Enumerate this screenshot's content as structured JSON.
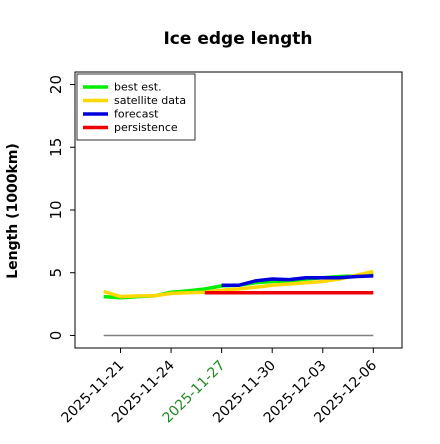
{
  "chart_data": {
    "type": "line",
    "title": "Ice edge length",
    "xlabel": "",
    "ylabel": "Length (1000km)",
    "ylim": [
      -1,
      21
    ],
    "x_ticks": [
      {
        "label": "2025-11-21",
        "day": 21,
        "color": "#000000"
      },
      {
        "label": "2025-11-24",
        "day": 24,
        "color": "#000000"
      },
      {
        "label": "2025-11-27",
        "day": 27,
        "color": "#228B22"
      },
      {
        "label": "2025-11-30",
        "day": 30,
        "color": "#000000"
      },
      {
        "label": "2025-12-03",
        "day": 33,
        "color": "#000000"
      },
      {
        "label": "2025-12-06",
        "day": 36,
        "color": "#000000"
      }
    ],
    "y_ticks": [
      0,
      5,
      10,
      15,
      20
    ],
    "xlim": [
      18.3,
      37.7
    ],
    "grid": false,
    "legend_position": "top-left",
    "zero_line": {
      "y": 0,
      "x_start": 20,
      "x_end": 36,
      "color": "#808080"
    },
    "series": [
      {
        "name": "best est.",
        "color": "#00ee00",
        "points": [
          {
            "x": "2025-11-20",
            "y": 3.1
          },
          {
            "x": "2025-11-21",
            "y": 3.0
          },
          {
            "x": "2025-11-22",
            "y": 3.1
          },
          {
            "x": "2025-11-23",
            "y": 3.15
          },
          {
            "x": "2025-11-24",
            "y": 3.45
          },
          {
            "x": "2025-11-25",
            "y": 3.55
          },
          {
            "x": "2025-11-26",
            "y": 3.7
          },
          {
            "x": "2025-11-27",
            "y": 3.95
          },
          {
            "x": "2025-11-28",
            "y": 4.0
          },
          {
            "x": "2025-11-29",
            "y": 4.2
          },
          {
            "x": "2025-11-30",
            "y": 4.3
          },
          {
            "x": "2025-12-01",
            "y": 4.35
          },
          {
            "x": "2025-12-02",
            "y": 4.5
          },
          {
            "x": "2025-12-03",
            "y": 4.6
          },
          {
            "x": "2025-12-04",
            "y": 4.7
          },
          {
            "x": "2025-12-05",
            "y": 4.75
          },
          {
            "x": "2025-12-06",
            "y": 4.85
          }
        ]
      },
      {
        "name": "satellite data",
        "color": "#ffd700",
        "points": [
          {
            "x": "2025-11-20",
            "y": 3.5
          },
          {
            "x": "2025-11-21",
            "y": 3.1
          },
          {
            "x": "2025-11-22",
            "y": 3.15
          },
          {
            "x": "2025-11-23",
            "y": 3.15
          },
          {
            "x": "2025-11-24",
            "y": 3.35
          },
          {
            "x": "2025-11-25",
            "y": 3.4
          },
          {
            "x": "2025-11-26",
            "y": 3.45
          },
          {
            "x": "2025-11-27",
            "y": 3.6
          },
          {
            "x": "2025-11-28",
            "y": 3.7
          },
          {
            "x": "2025-11-29",
            "y": 3.85
          },
          {
            "x": "2025-11-30",
            "y": 4.0
          },
          {
            "x": "2025-12-01",
            "y": 4.1
          },
          {
            "x": "2025-12-02",
            "y": 4.2
          },
          {
            "x": "2025-12-03",
            "y": 4.3
          },
          {
            "x": "2025-12-04",
            "y": 4.5
          },
          {
            "x": "2025-12-05",
            "y": 4.8
          },
          {
            "x": "2025-12-06",
            "y": 5.1
          }
        ]
      },
      {
        "name": "forecast",
        "color": "#0000dd",
        "points": [
          {
            "x": "2025-11-27",
            "y": 4.0
          },
          {
            "x": "2025-11-28",
            "y": 4.0
          },
          {
            "x": "2025-11-29",
            "y": 4.35
          },
          {
            "x": "2025-11-30",
            "y": 4.5
          },
          {
            "x": "2025-12-01",
            "y": 4.45
          },
          {
            "x": "2025-12-02",
            "y": 4.6
          },
          {
            "x": "2025-12-03",
            "y": 4.6
          },
          {
            "x": "2025-12-04",
            "y": 4.6
          },
          {
            "x": "2025-12-05",
            "y": 4.7
          },
          {
            "x": "2025-12-06",
            "y": 4.75
          }
        ]
      },
      {
        "name": "persistence",
        "color": "#ee0000",
        "points": [
          {
            "x": "2025-11-26",
            "y": 3.4
          },
          {
            "x": "2025-12-06",
            "y": 3.4
          }
        ]
      }
    ]
  }
}
